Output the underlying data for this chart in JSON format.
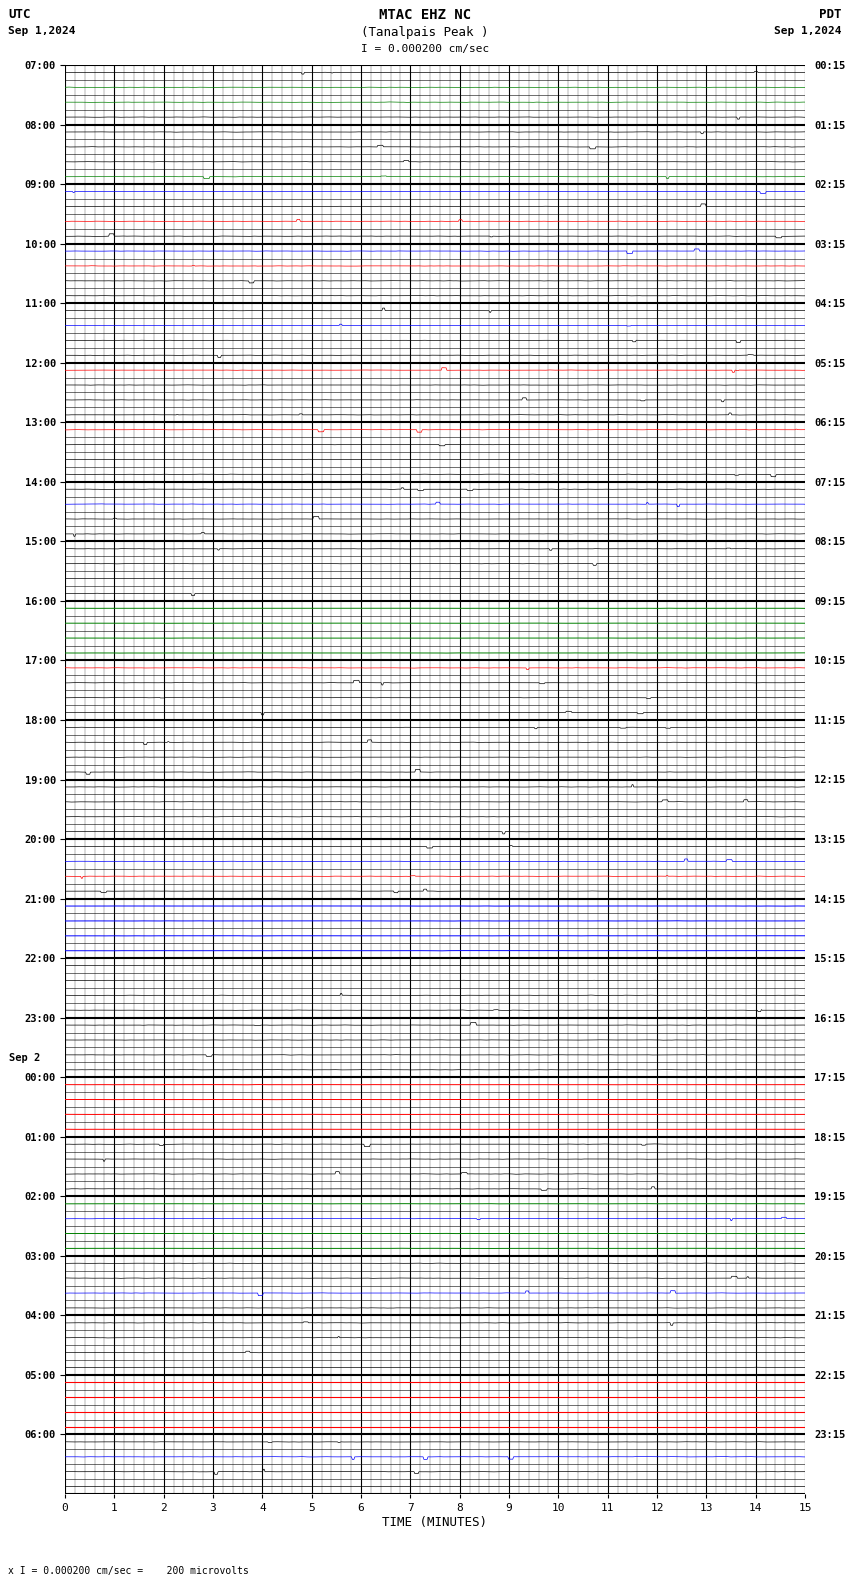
{
  "title_line1": "MTAC EHZ NC",
  "title_line2": "(Tanalpais Peak )",
  "scale_label": "I = 0.000200 cm/sec",
  "footer_label": "x I = 0.000200 cm/sec =    200 microvolts",
  "left_header": "UTC",
  "left_date": "Sep 1,2024",
  "right_header": "PDT",
  "right_date": "Sep 1,2024",
  "sep2_label": "Sep 2",
  "xlabel": "TIME (MINUTES)",
  "bg_color": "#ffffff",
  "fig_width": 8.5,
  "fig_height": 15.84,
  "hours": [
    {
      "utc": "07:00",
      "pdt": "00:15",
      "sub_colors": [
        "#000000",
        "#008000",
        "#008000",
        "#000000"
      ]
    },
    {
      "utc": "08:00",
      "pdt": "01:15",
      "sub_colors": [
        "#008000",
        "#000000",
        "#000000",
        "#000000"
      ]
    },
    {
      "utc": "09:00",
      "pdt": "02:15",
      "sub_colors": [
        "#000000",
        "#ff0000",
        "#000000",
        "#0000ff"
      ]
    },
    {
      "utc": "10:00",
      "pdt": "03:15",
      "sub_colors": [
        "#000000",
        "#000000",
        "#ff0000",
        "#0000ff"
      ]
    },
    {
      "utc": "11:00",
      "pdt": "04:15",
      "sub_colors": [
        "#000000",
        "#000000",
        "#0000ff",
        "#000000"
      ]
    },
    {
      "utc": "12:00",
      "pdt": "05:15",
      "sub_colors": [
        "#000000",
        "#000000",
        "#000000",
        "#ff0000"
      ]
    },
    {
      "utc": "13:00",
      "pdt": "06:15",
      "sub_colors": [
        "#000000",
        "#000000",
        "#000000",
        "#ff0000"
      ]
    },
    {
      "utc": "14:00",
      "pdt": "07:15",
      "sub_colors": [
        "#000000",
        "#000000",
        "#0000ff",
        "#000000"
      ]
    },
    {
      "utc": "15:00",
      "pdt": "08:15",
      "sub_colors": [
        "#000000",
        "#000000",
        "#000000",
        "#000000"
      ]
    },
    {
      "utc": "16:00",
      "pdt": "09:15",
      "sub_colors": [
        "#008000",
        "#008000",
        "#008000",
        "#008000"
      ],
      "special": "green_line"
    },
    {
      "utc": "17:00",
      "pdt": "10:15",
      "sub_colors": [
        "#000000",
        "#000000",
        "#000000",
        "#ff0000"
      ]
    },
    {
      "utc": "18:00",
      "pdt": "11:15",
      "sub_colors": [
        "#000000",
        "#000000",
        "#000000",
        "#000000"
      ]
    },
    {
      "utc": "19:00",
      "pdt": "12:15",
      "sub_colors": [
        "#000000",
        "#000000",
        "#000000",
        "#000000"
      ]
    },
    {
      "utc": "20:00",
      "pdt": "13:15",
      "sub_colors": [
        "#000000",
        "#ff0000",
        "#0000ff",
        "#000000"
      ]
    },
    {
      "utc": "21:00",
      "pdt": "14:15",
      "sub_colors": [
        "#0000ff",
        "#0000ff",
        "#0000ff",
        "#0000ff"
      ],
      "special": "blue_line"
    },
    {
      "utc": "22:00",
      "pdt": "15:15",
      "sub_colors": [
        "#000000",
        "#000000",
        "#000000",
        "#000000"
      ]
    },
    {
      "utc": "23:00",
      "pdt": "16:15",
      "sub_colors": [
        "#000000",
        "#000000",
        "#000000",
        "#000000"
      ]
    },
    {
      "utc": "00:00",
      "pdt": "17:15",
      "sub_colors": [
        "#ff0000",
        "#ff0000",
        "#ff0000",
        "#ff0000"
      ],
      "special": "red_line",
      "sep2": true
    },
    {
      "utc": "01:00",
      "pdt": "18:15",
      "sub_colors": [
        "#000000",
        "#000000",
        "#000000",
        "#000000"
      ]
    },
    {
      "utc": "02:00",
      "pdt": "19:15",
      "sub_colors": [
        "#008000",
        "#008000",
        "#0000ff",
        "#008000"
      ],
      "special": "green_line2"
    },
    {
      "utc": "03:00",
      "pdt": "20:15",
      "sub_colors": [
        "#000000",
        "#0000ff",
        "#000000",
        "#000000"
      ]
    },
    {
      "utc": "04:00",
      "pdt": "21:15",
      "sub_colors": [
        "#000000",
        "#000000",
        "#000000",
        "#000000"
      ]
    },
    {
      "utc": "05:00",
      "pdt": "22:15",
      "sub_colors": [
        "#ff0000",
        "#ff0000",
        "#ff0000",
        "#ff0000"
      ],
      "special": "red_flat"
    },
    {
      "utc": "06:00",
      "pdt": "23:15",
      "sub_colors": [
        "#000000",
        "#000000",
        "#0000ff",
        "#000000"
      ]
    }
  ]
}
